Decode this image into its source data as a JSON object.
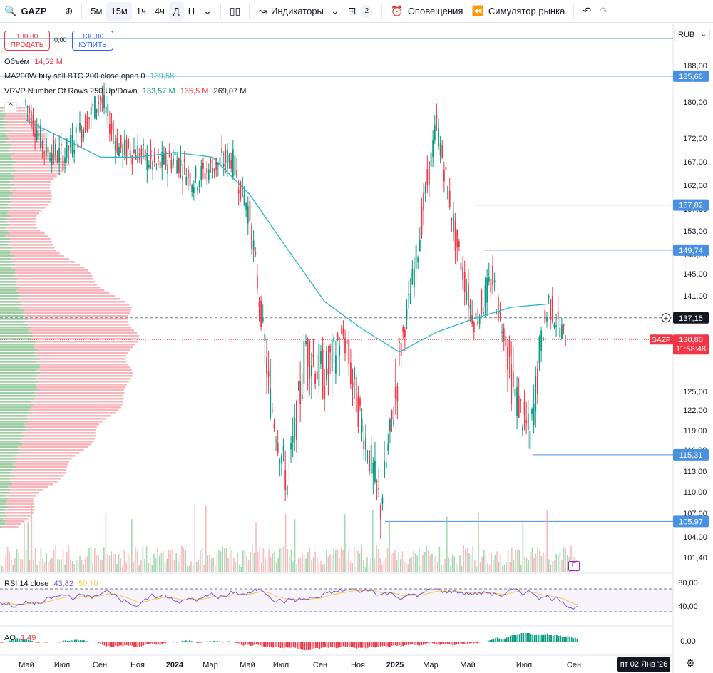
{
  "toolbar": {
    "symbol": "GAZP",
    "intervals": [
      "5м",
      "15м",
      "1ч",
      "4ч",
      "Д",
      "Н"
    ],
    "indicators_label": "Индикаторы",
    "layouts_count": "2",
    "alerts_label": "Оповещения",
    "replay_label": "Симулятор рынка"
  },
  "trade": {
    "sell_price": "130,80",
    "sell_label": "ПРОДАТЬ",
    "spread": "0,00",
    "buy_price": "130,80",
    "buy_label": "КУПИТЬ"
  },
  "currency": "RUB",
  "legend": {
    "volume_label": "Объём",
    "volume_value": "14,52 M",
    "ma_label": "MA200W buy sell BTC 200 close open 0",
    "ma_value": "139,58",
    "vrvp_label": "VRVP Number Of Rows 250 Up/Down",
    "vrvp_up": "133,57 M",
    "vrvp_down": "135,5 M",
    "vrvp_total": "269,07 M"
  },
  "rsi_legend": {
    "label": "RSI 14 close",
    "rsi": "43,82",
    "ma": "50,70"
  },
  "ao_legend": {
    "label": "AO",
    "value": "1,49"
  },
  "date_badge": "пт 02 Янв '26",
  "last_price": {
    "symbol": "GAZP",
    "price": "130,80",
    "countdown": "11:58:48"
  },
  "crosshair_price": "137,15",
  "colors": {
    "up": "#089981",
    "down": "#f23645",
    "ma": "#26b6c9",
    "level": "#2962ff",
    "label_bg": "#4a90e2",
    "rsi": "#7e57c2",
    "rsi_ma": "#f7c948"
  },
  "chart_data": {
    "type": "candlestick",
    "price_axis": [
      "188,00",
      "180,00",
      "172,00",
      "167,00",
      "162,00",
      "157,00",
      "153,00",
      "149,00",
      "145,00",
      "141,00",
      "137,00",
      "130,00",
      "125,00",
      "122,00",
      "119,00",
      "116,00",
      "113,00",
      "110,00",
      "107,00",
      "104,00",
      "101,40"
    ],
    "time_axis": [
      "Май",
      "Июл",
      "Сен",
      "Ноя",
      "2024",
      "Мар",
      "Май",
      "Июл",
      "Сен",
      "Ноя",
      "2025",
      "Мар",
      "Май",
      "Июл",
      "Сен"
    ],
    "levels": [
      185.66,
      157.82,
      149.74,
      115.31,
      105.97,
      130.98
    ],
    "level_labels": [
      "185,66",
      "157,82",
      "149,74",
      "115,31",
      "105,97",
      "130,98"
    ],
    "close_path": [
      [
        "2023-05",
        180
      ],
      [
        "2023-06",
        170
      ],
      [
        "2023-07",
        168
      ],
      [
        "2023-08",
        174
      ],
      [
        "2023-09",
        181
      ],
      [
        "2023-10",
        170
      ],
      [
        "2023-11",
        169
      ],
      [
        "2023-12",
        166
      ],
      [
        "2024-01",
        168
      ],
      [
        "2024-02",
        163
      ],
      [
        "2024-03",
        166
      ],
      [
        "2024-04",
        168
      ],
      [
        "2024-05",
        156
      ],
      [
        "2024-06",
        125
      ],
      [
        "2024-07",
        111
      ],
      [
        "2024-08",
        130
      ],
      [
        "2024-09",
        126
      ],
      [
        "2024-10",
        132
      ],
      [
        "2024-11",
        120
      ],
      [
        "2024-12",
        108
      ],
      [
        "2025-01",
        128
      ],
      [
        "2025-02",
        150
      ],
      [
        "2025-03",
        175
      ],
      [
        "2025-04",
        152
      ],
      [
        "2025-05",
        136
      ],
      [
        "2025-06",
        144
      ],
      [
        "2025-07",
        126
      ],
      [
        "2025-08",
        118
      ],
      [
        "2025-09",
        140
      ],
      [
        "2025-10",
        130.8
      ]
    ],
    "ma200w_path": [
      [
        "2023-05",
        176
      ],
      [
        "2023-07",
        172
      ],
      [
        "2023-09",
        168
      ],
      [
        "2023-11",
        168
      ],
      [
        "2024-01",
        169
      ],
      [
        "2024-03",
        168
      ],
      [
        "2024-05",
        160
      ],
      [
        "2024-07",
        150
      ],
      [
        "2024-09",
        140
      ],
      [
        "2024-11",
        134
      ],
      [
        "2025-01",
        129
      ],
      [
        "2025-03",
        133
      ],
      [
        "2025-05",
        137
      ],
      [
        "2025-07",
        139
      ],
      [
        "2025-09",
        139.58
      ]
    ],
    "rsi": {
      "levels": [
        80,
        40
      ],
      "last": 43.82,
      "ma_last": 50.7
    },
    "ao_last": 1.49
  }
}
